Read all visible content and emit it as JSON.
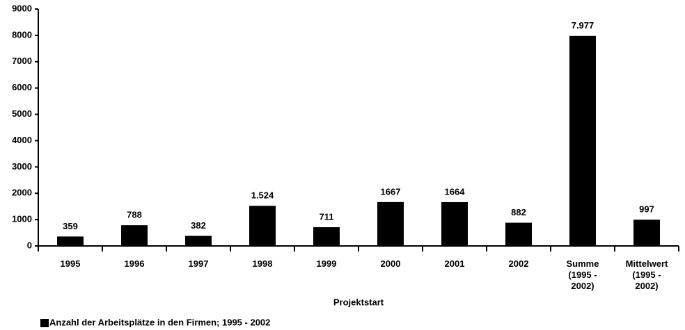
{
  "chart_data": {
    "type": "bar",
    "x_label": "Projektstart",
    "categories": [
      "1995",
      "1996",
      "1997",
      "1998",
      "1999",
      "2000",
      "2001",
      "2002",
      "Summe\n(1995 -\n2002)",
      "Mittelwert\n(1995 -\n2002)"
    ],
    "series": [
      {
        "name": "Anzahl der Arbeitsplätze in den Firmen; 1995 - 2002",
        "color": "#000000",
        "values": [
          359,
          788,
          382,
          1524,
          711,
          1667,
          1664,
          882,
          7977,
          997
        ],
        "value_labels": [
          "359",
          "788",
          "382",
          "1.524",
          "711",
          "1667",
          "1664",
          "882",
          "7.977",
          "997"
        ]
      }
    ],
    "ylim": [
      0,
      9000
    ],
    "yticks": [
      0,
      1000,
      2000,
      3000,
      4000,
      5000,
      6000,
      7000,
      8000,
      9000
    ],
    "grid": false,
    "legend": "bottom-left"
  }
}
